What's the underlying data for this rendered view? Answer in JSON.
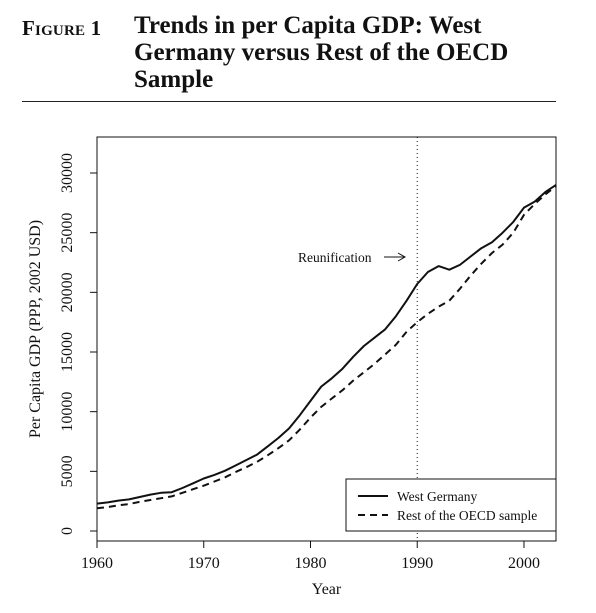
{
  "figure": {
    "label": "Figure 1",
    "title": "Trends in per Capita GDP: West Germany versus Rest of the OECD Sample"
  },
  "chart_data": {
    "type": "line",
    "xlabel": "Year",
    "ylabel": "Per Capita GDP (PPP, 2002 USD)",
    "xlim": [
      1960,
      2003
    ],
    "ylim": [
      0,
      30000
    ],
    "x_ticks": [
      1960,
      1970,
      1980,
      1990,
      2000
    ],
    "y_ticks": [
      0,
      5000,
      10000,
      15000,
      20000,
      25000,
      30000
    ],
    "x_tick_labels": [
      "1960",
      "1970",
      "1980",
      "1990",
      "2000"
    ],
    "y_tick_labels": [
      "0",
      "5000",
      "10000",
      "15000",
      "20000",
      "25000",
      "30000"
    ],
    "grid": false,
    "legend_position": "bottom-right",
    "series": [
      {
        "name": "West Germany",
        "style": "solid",
        "color": "#111111",
        "x": [
          1960,
          1961,
          1962,
          1963,
          1964,
          1965,
          1966,
          1967,
          1968,
          1969,
          1970,
          1971,
          1972,
          1973,
          1974,
          1975,
          1976,
          1977,
          1978,
          1979,
          1980,
          1981,
          1982,
          1983,
          1984,
          1985,
          1986,
          1987,
          1988,
          1989,
          1990,
          1991,
          1992,
          1993,
          1994,
          1995,
          1996,
          1997,
          1998,
          1999,
          2000,
          2001,
          2002,
          2003
        ],
        "y": [
          2300,
          2400,
          2550,
          2650,
          2850,
          3050,
          3200,
          3250,
          3600,
          4000,
          4400,
          4700,
          5050,
          5500,
          5950,
          6400,
          7100,
          7800,
          8600,
          9700,
          10900,
          12100,
          12800,
          13600,
          14600,
          15500,
          16200,
          16900,
          18000,
          19300,
          20700,
          21700,
          22200,
          21900,
          22300,
          23000,
          23700,
          24200,
          25000,
          25900,
          27100,
          27600,
          28400,
          29000
        ]
      },
      {
        "name": "Rest of the OECD sample",
        "style": "dashed",
        "color": "#111111",
        "x": [
          1960,
          1961,
          1962,
          1963,
          1964,
          1965,
          1966,
          1967,
          1968,
          1969,
          1970,
          1971,
          1972,
          1973,
          1974,
          1975,
          1976,
          1977,
          1978,
          1979,
          1980,
          1981,
          1982,
          1983,
          1984,
          1985,
          1986,
          1987,
          1988,
          1989,
          1990,
          1991,
          1992,
          1993,
          1994,
          1995,
          1996,
          1997,
          1998,
          1999,
          2000,
          2001,
          2002,
          2003
        ],
        "y": [
          1900,
          2000,
          2150,
          2250,
          2450,
          2600,
          2750,
          2900,
          3200,
          3500,
          3800,
          4150,
          4500,
          4950,
          5350,
          5800,
          6350,
          6950,
          7600,
          8500,
          9500,
          10400,
          11100,
          11800,
          12600,
          13300,
          14000,
          14800,
          15600,
          16700,
          17500,
          18200,
          18800,
          19300,
          20300,
          21400,
          22400,
          23300,
          24000,
          25000,
          26500,
          27400,
          28200,
          28900
        ]
      }
    ],
    "annotations": [
      {
        "text": "Reunification",
        "x": 1990,
        "arrow": "right",
        "vline": true
      }
    ]
  }
}
